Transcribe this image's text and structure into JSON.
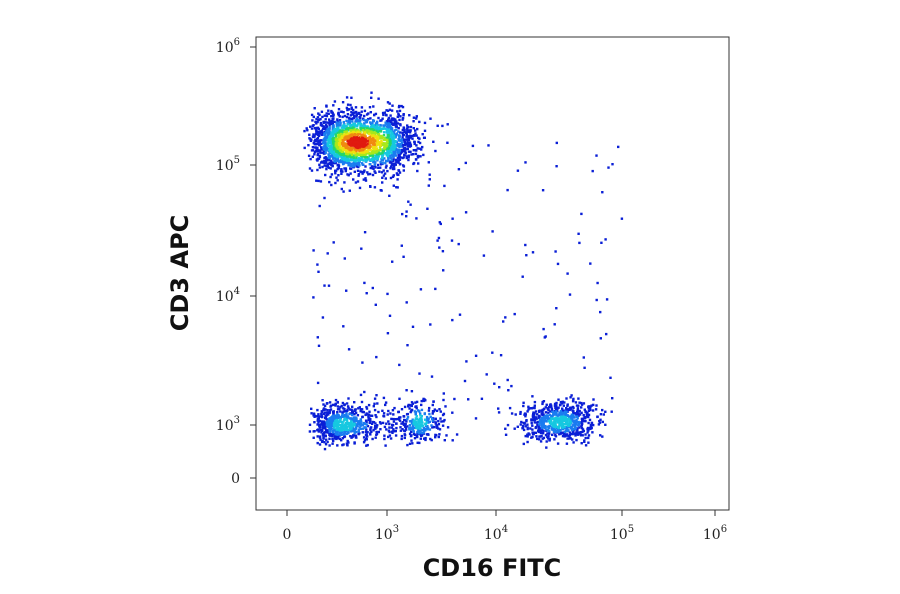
{
  "chart_data": {
    "type": "scatter",
    "title": "",
    "xlabel": "CD16 FITC",
    "ylabel": "CD3 APC",
    "x_scale": "biexponential",
    "y_scale": "biexponential",
    "x_ticks": [
      {
        "value": 0,
        "base": "0",
        "exp": ""
      },
      {
        "value": 1000,
        "base": "10",
        "exp": "3"
      },
      {
        "value": 10000,
        "base": "10",
        "exp": "4"
      },
      {
        "value": 100000,
        "base": "10",
        "exp": "5"
      },
      {
        "value": 1000000,
        "base": "10",
        "exp": "6"
      }
    ],
    "y_ticks": [
      {
        "value": 0,
        "base": "0",
        "exp": ""
      },
      {
        "value": 1000,
        "base": "10",
        "exp": "3"
      },
      {
        "value": 10000,
        "base": "10",
        "exp": "4"
      },
      {
        "value": 100000,
        "base": "10",
        "exp": "5"
      },
      {
        "value": 1000000,
        "base": "10",
        "exp": "6"
      }
    ],
    "grid": false,
    "legend": "none",
    "colormap": [
      "#0a1fd6",
      "#1a7cf0",
      "#16c8e0",
      "#24d66a",
      "#a8e81c",
      "#f0e010",
      "#f08a10",
      "#e01a10"
    ],
    "populations": [
      {
        "name": "",
        "center": [
          700,
          155000
        ],
        "count": 2200,
        "spread": [
          0.19,
          0.13
        ]
      },
      {
        "name": "",
        "center": [
          560,
          1000
        ],
        "count": 650,
        "spread": [
          0.14,
          0.085
        ]
      },
      {
        "name": "",
        "center": [
          2000,
          1050
        ],
        "count": 260,
        "spread": [
          0.11,
          0.09
        ]
      },
      {
        "name": "",
        "center": [
          32000,
          1050
        ],
        "count": 650,
        "spread": [
          0.15,
          0.08
        ]
      }
    ]
  }
}
